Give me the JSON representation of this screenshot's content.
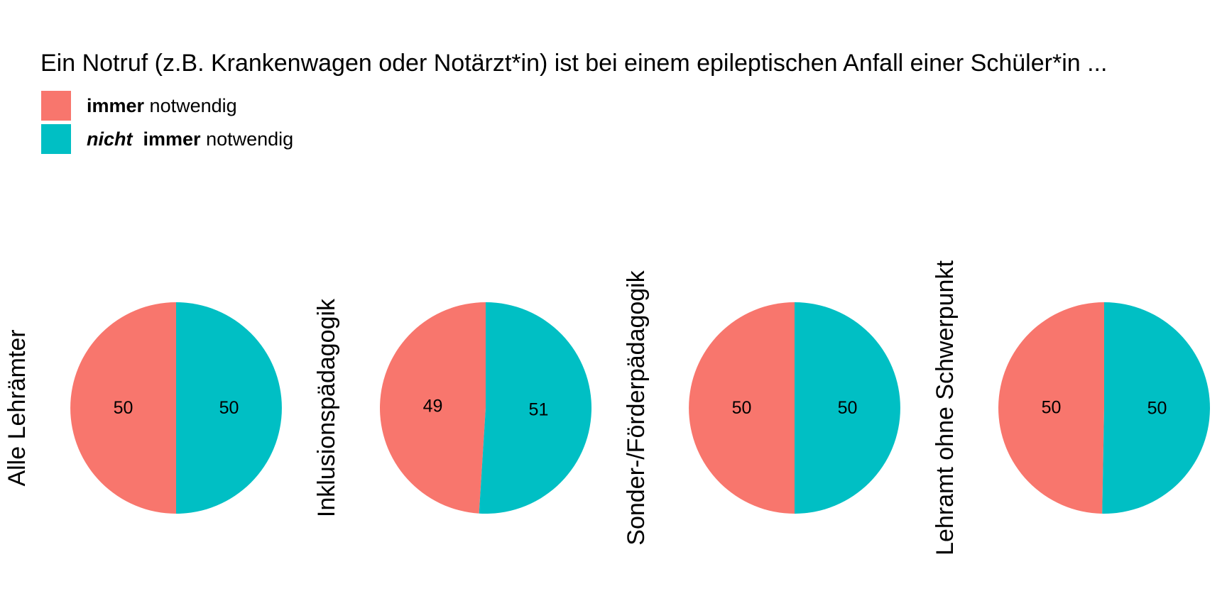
{
  "chart_data": {
    "type": "pie",
    "title": "Ein Notruf (z.B. Krankenwagen oder Notärzt*in) ist bei einem epileptischen Anfall einer Schüler*in ...",
    "legend_position": "top-left",
    "legend": [
      {
        "emphasis_italic": "",
        "bold": "immer",
        "rest": " notwendig",
        "color": "#F8766D"
      },
      {
        "emphasis_italic": "nicht",
        "bold": "immer",
        "rest": " notwendig",
        "color": "#00BFC4"
      }
    ],
    "categories": [
      "immer notwendig",
      "nicht immer notwendig"
    ],
    "colors": [
      "#F8766D",
      "#00BFC4"
    ],
    "panels": [
      {
        "label": "Alle Lehrämter",
        "values": [
          50,
          50
        ],
        "value_labels": [
          "50",
          "50"
        ]
      },
      {
        "label": "Inklusionspädagogik",
        "values": [
          49,
          51
        ],
        "value_labels": [
          "49",
          "51"
        ]
      },
      {
        "label": "Sonder-/Förderpädagogik",
        "values": [
          50,
          50
        ],
        "value_labels": [
          "50",
          "50"
        ]
      },
      {
        "label": "Lehramt ohne Schwerpunkt",
        "values": [
          49.7,
          50.3
        ],
        "value_labels": [
          "50",
          "50"
        ]
      }
    ]
  }
}
